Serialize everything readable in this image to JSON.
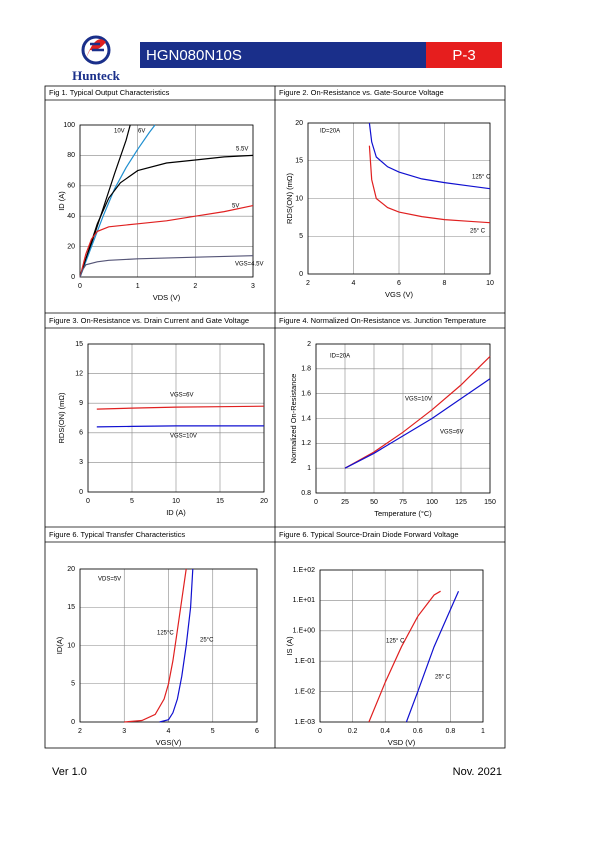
{
  "header": {
    "logo_text": "Hunteck",
    "part_number": "HGN080N10S",
    "page": "P-3"
  },
  "footer": {
    "version": "Ver 1.0",
    "date": "Nov. 2021"
  },
  "chart_data": [
    {
      "type": "line",
      "title": "Fig 1. Typical Output Characteristics",
      "x_label": "VDS (V)",
      "y_label": "ID (A)",
      "xlim": [
        0,
        3
      ],
      "xticks": [
        0,
        1,
        2,
        3
      ],
      "ylim": [
        0,
        100
      ],
      "yticks": [
        0,
        20,
        40,
        60,
        80,
        100
      ],
      "grid": true,
      "annotations": [
        "10V",
        "6V",
        "5.5V",
        "5V",
        "VGS=4.5V"
      ],
      "series": [
        {
          "color": "#000000",
          "x": [
            0,
            0.2,
            0.4,
            0.6,
            0.8,
            0.87
          ],
          "values": [
            0,
            22,
            45,
            68,
            90,
            100
          ]
        },
        {
          "color": "#1f8fd0",
          "x": [
            0,
            0.2,
            0.4,
            0.6,
            0.8,
            1.0,
            1.2,
            1.3
          ],
          "values": [
            0,
            20,
            40,
            58,
            72,
            84,
            95,
            100
          ]
        },
        {
          "color": "#000000",
          "x": [
            0,
            0.1,
            0.3,
            0.5,
            0.7,
            1.0,
            1.5,
            2.0,
            2.5,
            3.0
          ],
          "values": [
            0,
            12,
            35,
            52,
            62,
            70,
            75,
            77,
            79,
            80
          ]
        },
        {
          "color": "#e02020",
          "x": [
            0,
            0.1,
            0.2,
            0.3,
            0.5,
            1,
            1.5,
            2,
            2.5,
            3
          ],
          "values": [
            0,
            15,
            25,
            30,
            33,
            35,
            37,
            40,
            43,
            47
          ]
        },
        {
          "color": "#555577",
          "x": [
            0,
            0.05,
            0.1,
            0.3,
            0.5,
            1,
            2,
            3
          ],
          "values": [
            0,
            5,
            8,
            10,
            11,
            12,
            13,
            14
          ]
        }
      ]
    },
    {
      "type": "line",
      "title": "Figure 2. On-Resistance vs. Gate-Source Voltage",
      "x_label": "VGS (V)",
      "y_label": "RDS(ON) (mΩ)",
      "xlim": [
        2,
        10
      ],
      "xticks": [
        2,
        4,
        6,
        8,
        10
      ],
      "ylim": [
        0,
        20
      ],
      "yticks": [
        0,
        5,
        10,
        15,
        20
      ],
      "grid": true,
      "annotations": [
        "ID=20A",
        "125° C",
        "25° C"
      ],
      "series": [
        {
          "color": "#1010d0",
          "x": [
            4.7,
            4.8,
            5,
            5.5,
            6,
            7,
            8,
            9,
            10
          ],
          "values": [
            20,
            17.5,
            15.5,
            14.2,
            13.5,
            12.6,
            12.1,
            11.7,
            11.3
          ]
        },
        {
          "color": "#e02020",
          "x": [
            4.7,
            4.8,
            5,
            5.5,
            6,
            7,
            8,
            9,
            10
          ],
          "values": [
            17,
            12.5,
            10,
            8.8,
            8.2,
            7.6,
            7.2,
            7.0,
            6.8
          ]
        }
      ]
    },
    {
      "type": "line",
      "title": "Figure 3. On-Resistance vs. Drain Current and Gate Voltage",
      "x_label": "ID (A)",
      "y_label": "RDS(ON) (mΩ)",
      "xlim": [
        0,
        20
      ],
      "xticks": [
        0,
        5,
        10,
        15,
        20
      ],
      "ylim": [
        0,
        15
      ],
      "yticks": [
        0,
        3,
        6,
        9,
        12,
        15
      ],
      "grid": true,
      "annotations": [
        "VGS=6V",
        "VGS=10V"
      ],
      "series": [
        {
          "color": "#e02020",
          "x": [
            1,
            5,
            10,
            15,
            20
          ],
          "values": [
            8.4,
            8.5,
            8.6,
            8.65,
            8.7
          ]
        },
        {
          "color": "#1010d0",
          "x": [
            1,
            5,
            10,
            15,
            20
          ],
          "values": [
            6.6,
            6.65,
            6.7,
            6.7,
            6.7
          ]
        }
      ]
    },
    {
      "type": "line",
      "title": "Figure 4. Normalized On-Resistance vs. Junction Temperature",
      "x_label": "Temperature (°C)",
      "y_label": "Normalized On-Resistance",
      "xlim": [
        0,
        150
      ],
      "xticks": [
        0,
        25,
        50,
        75,
        100,
        125,
        150
      ],
      "ylim": [
        0.8,
        2
      ],
      "yticks": [
        0.8,
        1,
        1.2,
        1.4,
        1.6,
        1.8,
        2
      ],
      "grid": true,
      "annotations": [
        "ID=20A",
        "VGS=10V",
        "VGS=6V"
      ],
      "series": [
        {
          "color": "#e02020",
          "x": [
            25,
            50,
            75,
            100,
            125,
            150
          ],
          "values": [
            1,
            1.13,
            1.29,
            1.47,
            1.67,
            1.9
          ]
        },
        {
          "color": "#1010d0",
          "x": [
            25,
            50,
            75,
            100,
            125,
            150
          ],
          "values": [
            1,
            1.12,
            1.26,
            1.4,
            1.56,
            1.72
          ]
        }
      ]
    },
    {
      "type": "line",
      "title": "Figure 6. Typical Transfer Characteristics",
      "x_label": "VGS(V)",
      "y_label": "ID(A)",
      "xlim": [
        2,
        6
      ],
      "xticks": [
        2,
        3,
        4,
        5,
        6
      ],
      "ylim": [
        0,
        20
      ],
      "yticks": [
        0,
        5,
        10,
        15,
        20
      ],
      "grid": true,
      "annotations": [
        "VDS=5V",
        "125°C",
        "25°C"
      ],
      "series": [
        {
          "color": "#e02020",
          "x": [
            3,
            3.4,
            3.7,
            3.9,
            4.0,
            4.1,
            4.2,
            4.3,
            4.4
          ],
          "values": [
            0,
            0.2,
            1,
            3,
            5,
            8,
            12,
            16,
            20
          ]
        },
        {
          "color": "#1010d0",
          "x": [
            3.8,
            4.0,
            4.1,
            4.2,
            4.3,
            4.4,
            4.5,
            4.55
          ],
          "values": [
            0,
            0.3,
            1.2,
            3,
            6,
            10,
            15,
            20
          ]
        }
      ]
    },
    {
      "type": "line",
      "title": "Figure 6. Typical Source-Drain Diode Forward Voltage",
      "x_label": "VSD (V)",
      "y_label": "IS (A)",
      "xlim": [
        0,
        1
      ],
      "xticks": [
        0,
        0.2,
        0.4,
        0.6,
        0.8,
        1
      ],
      "ylim": [
        0.001,
        100
      ],
      "y_log": true,
      "yticks": [
        {
          "value": 0.001,
          "label": "1.E-03"
        },
        {
          "value": 0.01,
          "label": "1.E-02"
        },
        {
          "value": 0.1,
          "label": "1.E-01"
        },
        {
          "value": 1,
          "label": "1.E+00"
        },
        {
          "value": 10,
          "label": "1.E+01"
        },
        {
          "value": 100,
          "label": "1.E+02"
        }
      ],
      "grid": true,
      "annotations": [
        "125° C",
        "25° C"
      ],
      "series": [
        {
          "color": "#e02020",
          "x": [
            0.3,
            0.4,
            0.5,
            0.6,
            0.7,
            0.74
          ],
          "values": [
            0.001,
            0.02,
            0.3,
            3,
            15,
            20
          ]
        },
        {
          "color": "#1010d0",
          "x": [
            0.53,
            0.6,
            0.7,
            0.8,
            0.85
          ],
          "values": [
            0.001,
            0.01,
            0.3,
            5,
            20
          ]
        }
      ]
    }
  ]
}
